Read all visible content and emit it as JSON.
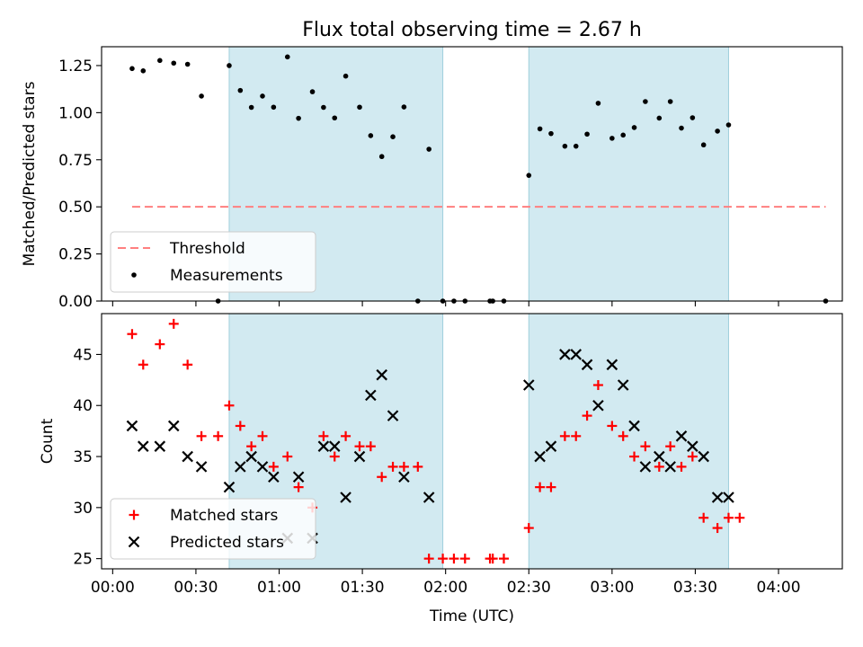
{
  "chart_data": [
    {
      "type": "scatter",
      "title": "Flux total observing time = 2.67 h",
      "xlabel": "",
      "ylabel": "Matched/Predicted stars",
      "ylim": [
        0,
        1.35
      ],
      "yticks": [
        "0.00",
        "0.25",
        "0.50",
        "0.75",
        "1.00",
        "1.25"
      ],
      "threshold": {
        "name": "Threshold",
        "value": 0.5,
        "x_start_min": 7,
        "x_end_min": 257,
        "color": "#ff7f7f"
      },
      "shaded_intervals_min": [
        [
          42,
          119
        ],
        [
          150,
          222
        ]
      ],
      "series": [
        {
          "name": "Measurements",
          "color": "#000000",
          "points": [
            [
              7,
              1.234
            ],
            [
              11,
              1.222
            ],
            [
              17,
              1.277
            ],
            [
              22,
              1.263
            ],
            [
              27,
              1.257
            ],
            [
              32,
              1.088
            ],
            [
              38,
              0.0
            ],
            [
              42,
              1.25
            ],
            [
              46,
              1.118
            ],
            [
              50,
              1.028
            ],
            [
              54,
              1.088
            ],
            [
              58,
              1.029
            ],
            [
              63,
              1.296
            ],
            [
              67,
              0.97
            ],
            [
              72,
              1.111
            ],
            [
              76,
              1.028
            ],
            [
              80,
              0.972
            ],
            [
              84,
              1.194
            ],
            [
              89,
              1.029
            ],
            [
              93,
              0.878
            ],
            [
              97,
              0.767
            ],
            [
              101,
              0.872
            ],
            [
              105,
              1.03
            ],
            [
              110,
              0.0
            ],
            [
              114,
              0.806
            ],
            [
              119,
              0.0
            ],
            [
              123,
              0.0
            ],
            [
              127,
              0.0
            ],
            [
              136,
              0.0
            ],
            [
              137,
              0.0
            ],
            [
              141,
              0.0
            ],
            [
              150,
              0.667
            ],
            [
              154,
              0.914
            ],
            [
              158,
              0.889
            ],
            [
              163,
              0.822
            ],
            [
              167,
              0.822
            ],
            [
              171,
              0.886
            ],
            [
              175,
              1.05
            ],
            [
              180,
              0.864
            ],
            [
              184,
              0.881
            ],
            [
              188,
              0.921
            ],
            [
              192,
              1.059
            ],
            [
              197,
              0.971
            ],
            [
              201,
              1.059
            ],
            [
              205,
              0.918
            ],
            [
              209,
              0.973
            ],
            [
              213,
              0.829
            ],
            [
              218,
              0.902
            ],
            [
              222,
              0.935
            ],
            [
              257,
              0.0
            ]
          ]
        }
      ],
      "legend": {
        "position": "lower-left",
        "entries": [
          "Threshold",
          "Measurements"
        ]
      },
      "grid": false
    },
    {
      "type": "scatter",
      "title": "",
      "xlabel": "Time (UTC)",
      "ylabel": "Count",
      "xlim_min": [
        -4,
        263
      ],
      "ylim": [
        24,
        49
      ],
      "xticks": [
        "00:00",
        "00:30",
        "01:00",
        "01:30",
        "02:00",
        "02:30",
        "03:00",
        "03:30",
        "04:00"
      ],
      "yticks": [
        "25",
        "30",
        "35",
        "40",
        "45"
      ],
      "shaded_intervals_min": [
        [
          42,
          119
        ],
        [
          150,
          222
        ]
      ],
      "series": [
        {
          "name": "Matched stars",
          "color": "#ff0000",
          "marker": "+",
          "points": [
            [
              7,
              47
            ],
            [
              11,
              44
            ],
            [
              17,
              46
            ],
            [
              22,
              48
            ],
            [
              27,
              44
            ],
            [
              32,
              37
            ],
            [
              38,
              37
            ],
            [
              42,
              40
            ],
            [
              46,
              38
            ],
            [
              50,
              36
            ],
            [
              54,
              37
            ],
            [
              58,
              34
            ],
            [
              63,
              35
            ],
            [
              67,
              32
            ],
            [
              72,
              30
            ],
            [
              76,
              37
            ],
            [
              80,
              35
            ],
            [
              84,
              37
            ],
            [
              89,
              36
            ],
            [
              93,
              36
            ],
            [
              97,
              33
            ],
            [
              101,
              34
            ],
            [
              105,
              34
            ],
            [
              110,
              34
            ],
            [
              114,
              25
            ],
            [
              119,
              25
            ],
            [
              123,
              25
            ],
            [
              127,
              25
            ],
            [
              136,
              25
            ],
            [
              137,
              25
            ],
            [
              141,
              25
            ],
            [
              150,
              28
            ],
            [
              154,
              32
            ],
            [
              158,
              32
            ],
            [
              163,
              37
            ],
            [
              167,
              37
            ],
            [
              171,
              39
            ],
            [
              175,
              42
            ],
            [
              180,
              38
            ],
            [
              184,
              37
            ],
            [
              188,
              35
            ],
            [
              192,
              36
            ],
            [
              197,
              34
            ],
            [
              201,
              36
            ],
            [
              205,
              34
            ],
            [
              209,
              35
            ],
            [
              213,
              29
            ],
            [
              218,
              28
            ],
            [
              222,
              29
            ],
            [
              226,
              29
            ]
          ]
        },
        {
          "name": "Predicted stars",
          "color": "#000000",
          "marker": "x",
          "points": [
            [
              7,
              38
            ],
            [
              11,
              36
            ],
            [
              17,
              36
            ],
            [
              22,
              38
            ],
            [
              27,
              35
            ],
            [
              32,
              34
            ],
            [
              42,
              32
            ],
            [
              46,
              34
            ],
            [
              50,
              35
            ],
            [
              54,
              34
            ],
            [
              58,
              33
            ],
            [
              63,
              27
            ],
            [
              67,
              33
            ],
            [
              72,
              27
            ],
            [
              76,
              36
            ],
            [
              80,
              36
            ],
            [
              84,
              31
            ],
            [
              89,
              35
            ],
            [
              93,
              41
            ],
            [
              97,
              43
            ],
            [
              101,
              39
            ],
            [
              105,
              33
            ],
            [
              114,
              31
            ],
            [
              150,
              42
            ],
            [
              154,
              35
            ],
            [
              158,
              36
            ],
            [
              163,
              45
            ],
            [
              167,
              45
            ],
            [
              171,
              44
            ],
            [
              175,
              40
            ],
            [
              180,
              44
            ],
            [
              184,
              42
            ],
            [
              188,
              38
            ],
            [
              192,
              34
            ],
            [
              197,
              35
            ],
            [
              201,
              34
            ],
            [
              205,
              37
            ],
            [
              209,
              36
            ],
            [
              213,
              35
            ],
            [
              218,
              31
            ],
            [
              222,
              31
            ]
          ]
        }
      ],
      "legend": {
        "position": "lower-left",
        "entries": [
          "Matched stars",
          "Predicted stars"
        ]
      },
      "grid": false
    }
  ]
}
